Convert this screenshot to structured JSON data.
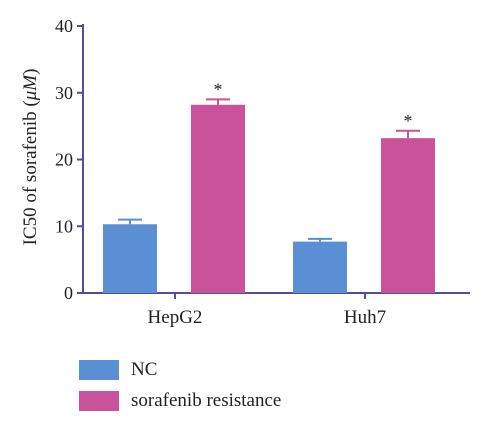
{
  "chart_data": {
    "type": "bar",
    "ylabel_main": "IC50 of sorafenib (",
    "ylabel_unit": "μM",
    "ylabel_close": ")",
    "categories": [
      "HepG2",
      "Huh7"
    ],
    "yticks": [
      "0",
      "10",
      "20",
      "30",
      "40"
    ],
    "ylim": [
      0,
      40
    ],
    "grid": false,
    "legend_position": "bottom-left",
    "series": [
      {
        "name": "NC",
        "color": "#5b8fd4",
        "values": [
          10.3,
          7.7
        ],
        "errors": [
          0.7,
          0.4
        ]
      },
      {
        "name": "sorafenib resistance",
        "color": "#c9529a",
        "values": [
          28.2,
          23.2
        ],
        "errors": [
          0.8,
          1.1
        ]
      }
    ],
    "annotations": [
      {
        "series": 1,
        "category": 0,
        "text": "*"
      },
      {
        "series": 1,
        "category": 1,
        "text": "*"
      }
    ]
  }
}
